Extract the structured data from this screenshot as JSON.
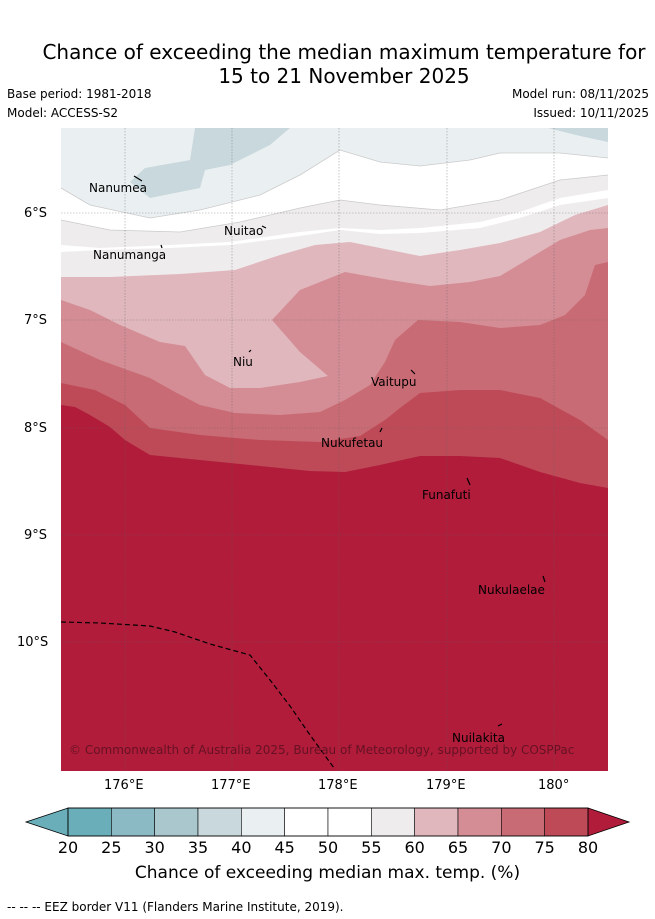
{
  "title_line1": "Chance of exceeding the median maximum temperature for",
  "title_line2": "15 to 21 November 2025",
  "base_period": "Base period: 1981-2018",
  "model": "Model: ACCESS-S2",
  "model_run": "Model run: 08/11/2025",
  "issued": "Issued: 10/11/2025",
  "copyright": "© Commonwealth of Australia 2025, Bureau of Meteorology, supported by COSPPac",
  "islands": {
    "nanumea": "Nanumea",
    "nuitao": "Nuitao",
    "nanumanga": "Nanumanga",
    "niu": "Niu",
    "vaitupu": "Vaitupu",
    "nukufetau": "Nukufetau",
    "funafuti": "Funafuti",
    "nukulaelae": "Nukulaelae",
    "nuilakita": "Nuilakita"
  },
  "lat_labels": [
    "6°S",
    "7°S",
    "8°S",
    "9°S",
    "10°S"
  ],
  "lon_labels": [
    "176°E",
    "177°E",
    "178°E",
    "179°E",
    "180°"
  ],
  "colorbar": {
    "ticks": [
      "20",
      "25",
      "30",
      "35",
      "40",
      "45",
      "50",
      "55",
      "60",
      "65",
      "70",
      "75",
      "80"
    ],
    "colors": [
      "#6aaeb9",
      "#8cbac4",
      "#a9c7cc",
      "#c9d8dc",
      "#eaf0f2",
      "#ffffff",
      "#ffffff",
      "#efecee",
      "#e0b7bd",
      "#d48d95",
      "#c96b74",
      "#be4a57",
      "#b01c3a"
    ],
    "title": "Chance of exceeding median max. temp. (%)"
  },
  "footer": "-- -- -- EEZ border V11 (Flanders Marine Institute, 2019)."
}
